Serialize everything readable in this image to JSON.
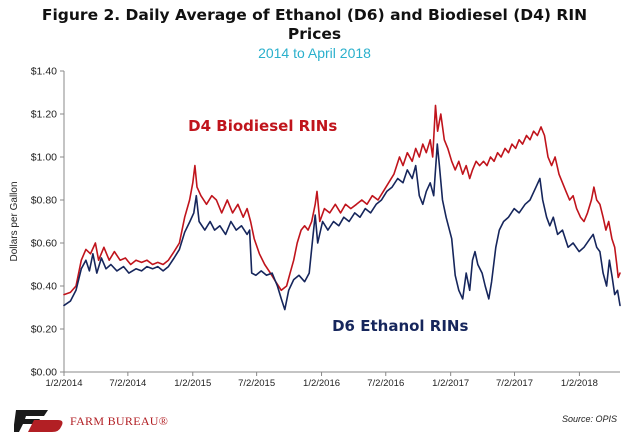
{
  "chart_data": {
    "type": "line",
    "title": "Figure 2. Daily Average of Ethanol (D6) and Biodiesel (D4) RIN Prices",
    "title_lines": [
      "Figure 2. Daily Average of Ethanol (D6) and Biodiesel (D4) RIN",
      "Prices"
    ],
    "subtitle": "2014 to April 2018",
    "ylabel": "Dollars per Gallon",
    "xlabel": "",
    "ylim": [
      0,
      1.4
    ],
    "yticks": [
      0,
      0.2,
      0.4,
      0.6,
      0.8,
      1.0,
      1.2,
      1.4
    ],
    "ytick_labels": [
      "$0.00",
      "$0.20",
      "$0.40",
      "$0.60",
      "$0.80",
      "$1.00",
      "$1.20",
      "$1.40"
    ],
    "xlim": [
      "2014-01-02",
      "2018-04-27"
    ],
    "xticks": [
      "2014-01-02",
      "2014-07-02",
      "2015-01-02",
      "2015-07-02",
      "2016-01-02",
      "2016-07-02",
      "2017-01-02",
      "2017-07-02",
      "2018-01-02"
    ],
    "xtick_labels": [
      "1/2/2014",
      "7/2/2014",
      "1/2/2015",
      "7/2/2015",
      "1/2/2016",
      "7/2/2016",
      "1/2/2017",
      "7/2/2017",
      "1/2/2018"
    ],
    "grid": false,
    "series": [
      {
        "name": "D4 Biodiesel RINs",
        "color": "#c0141c",
        "points": [
          [
            "2014-01-02",
            0.36
          ],
          [
            "2014-01-20",
            0.37
          ],
          [
            "2014-02-05",
            0.4
          ],
          [
            "2014-02-20",
            0.52
          ],
          [
            "2014-03-05",
            0.57
          ],
          [
            "2014-03-18",
            0.55
          ],
          [
            "2014-04-01",
            0.6
          ],
          [
            "2014-04-10",
            0.52
          ],
          [
            "2014-04-25",
            0.58
          ],
          [
            "2014-05-10",
            0.52
          ],
          [
            "2014-05-25",
            0.56
          ],
          [
            "2014-06-10",
            0.52
          ],
          [
            "2014-06-25",
            0.53
          ],
          [
            "2014-07-10",
            0.5
          ],
          [
            "2014-07-25",
            0.52
          ],
          [
            "2014-08-10",
            0.51
          ],
          [
            "2014-08-25",
            0.52
          ],
          [
            "2014-09-10",
            0.5
          ],
          [
            "2014-09-25",
            0.51
          ],
          [
            "2014-10-10",
            0.5
          ],
          [
            "2014-10-25",
            0.52
          ],
          [
            "2014-11-10",
            0.56
          ],
          [
            "2014-11-25",
            0.6
          ],
          [
            "2014-12-10",
            0.72
          ],
          [
            "2014-12-24",
            0.8
          ],
          [
            "2015-01-02",
            0.88
          ],
          [
            "2015-01-08",
            0.96
          ],
          [
            "2015-01-14",
            0.86
          ],
          [
            "2015-01-25",
            0.82
          ],
          [
            "2015-02-10",
            0.78
          ],
          [
            "2015-02-25",
            0.82
          ],
          [
            "2015-03-10",
            0.8
          ],
          [
            "2015-03-25",
            0.74
          ],
          [
            "2015-04-10",
            0.8
          ],
          [
            "2015-04-25",
            0.74
          ],
          [
            "2015-05-10",
            0.78
          ],
          [
            "2015-05-25",
            0.72
          ],
          [
            "2015-06-05",
            0.76
          ],
          [
            "2015-06-15",
            0.7
          ],
          [
            "2015-06-25",
            0.62
          ],
          [
            "2015-07-10",
            0.55
          ],
          [
            "2015-07-25",
            0.5
          ],
          [
            "2015-08-10",
            0.46
          ],
          [
            "2015-08-25",
            0.42
          ],
          [
            "2015-09-10",
            0.38
          ],
          [
            "2015-09-25",
            0.4
          ],
          [
            "2015-10-05",
            0.46
          ],
          [
            "2015-10-15",
            0.52
          ],
          [
            "2015-10-25",
            0.6
          ],
          [
            "2015-11-05",
            0.66
          ],
          [
            "2015-11-15",
            0.68
          ],
          [
            "2015-11-25",
            0.66
          ],
          [
            "2015-12-05",
            0.7
          ],
          [
            "2015-12-15",
            0.78
          ],
          [
            "2015-12-20",
            0.84
          ],
          [
            "2015-12-28",
            0.7
          ],
          [
            "2016-01-10",
            0.76
          ],
          [
            "2016-01-25",
            0.74
          ],
          [
            "2016-02-10",
            0.78
          ],
          [
            "2016-02-25",
            0.74
          ],
          [
            "2016-03-10",
            0.78
          ],
          [
            "2016-03-25",
            0.76
          ],
          [
            "2016-04-10",
            0.78
          ],
          [
            "2016-04-25",
            0.8
          ],
          [
            "2016-05-10",
            0.78
          ],
          [
            "2016-05-25",
            0.82
          ],
          [
            "2016-06-10",
            0.8
          ],
          [
            "2016-06-25",
            0.84
          ],
          [
            "2016-07-10",
            0.88
          ],
          [
            "2016-07-25",
            0.92
          ],
          [
            "2016-08-10",
            1.0
          ],
          [
            "2016-08-20",
            0.96
          ],
          [
            "2016-09-01",
            1.02
          ],
          [
            "2016-09-15",
            0.98
          ],
          [
            "2016-09-25",
            1.04
          ],
          [
            "2016-10-05",
            1.0
          ],
          [
            "2016-10-15",
            1.06
          ],
          [
            "2016-10-25",
            1.02
          ],
          [
            "2016-11-05",
            1.08
          ],
          [
            "2016-11-12",
            1.0
          ],
          [
            "2016-11-20",
            1.24
          ],
          [
            "2016-11-26",
            1.12
          ],
          [
            "2016-12-05",
            1.2
          ],
          [
            "2016-12-15",
            1.08
          ],
          [
            "2016-12-25",
            1.04
          ],
          [
            "2017-01-05",
            0.98
          ],
          [
            "2017-01-15",
            0.94
          ],
          [
            "2017-01-25",
            0.98
          ],
          [
            "2017-02-05",
            0.92
          ],
          [
            "2017-02-15",
            0.96
          ],
          [
            "2017-02-25",
            0.9
          ],
          [
            "2017-03-05",
            0.94
          ],
          [
            "2017-03-15",
            0.98
          ],
          [
            "2017-03-25",
            0.96
          ],
          [
            "2017-04-05",
            0.98
          ],
          [
            "2017-04-15",
            0.96
          ],
          [
            "2017-04-25",
            1.0
          ],
          [
            "2017-05-05",
            0.98
          ],
          [
            "2017-05-15",
            1.02
          ],
          [
            "2017-05-25",
            1.0
          ],
          [
            "2017-06-05",
            1.04
          ],
          [
            "2017-06-15",
            1.02
          ],
          [
            "2017-06-25",
            1.06
          ],
          [
            "2017-07-05",
            1.04
          ],
          [
            "2017-07-15",
            1.08
          ],
          [
            "2017-07-25",
            1.06
          ],
          [
            "2017-08-05",
            1.1
          ],
          [
            "2017-08-15",
            1.08
          ],
          [
            "2017-08-25",
            1.12
          ],
          [
            "2017-09-05",
            1.1
          ],
          [
            "2017-09-15",
            1.14
          ],
          [
            "2017-09-25",
            1.1
          ],
          [
            "2017-10-05",
            1.0
          ],
          [
            "2017-10-15",
            0.96
          ],
          [
            "2017-10-25",
            1.0
          ],
          [
            "2017-11-05",
            0.92
          ],
          [
            "2017-11-15",
            0.88
          ],
          [
            "2017-11-25",
            0.84
          ],
          [
            "2017-12-05",
            0.8
          ],
          [
            "2017-12-15",
            0.82
          ],
          [
            "2017-12-25",
            0.76
          ],
          [
            "2018-01-05",
            0.72
          ],
          [
            "2018-01-15",
            0.7
          ],
          [
            "2018-01-25",
            0.74
          ],
          [
            "2018-02-05",
            0.8
          ],
          [
            "2018-02-12",
            0.86
          ],
          [
            "2018-02-20",
            0.8
          ],
          [
            "2018-03-01",
            0.78
          ],
          [
            "2018-03-10",
            0.72
          ],
          [
            "2018-03-18",
            0.66
          ],
          [
            "2018-03-26",
            0.7
          ],
          [
            "2018-04-04",
            0.62
          ],
          [
            "2018-04-12",
            0.58
          ],
          [
            "2018-04-18",
            0.5
          ],
          [
            "2018-04-22",
            0.44
          ],
          [
            "2018-04-27",
            0.46
          ]
        ]
      },
      {
        "name": "D6 Ethanol RINs",
        "color": "#16265c",
        "points": [
          [
            "2014-01-02",
            0.31
          ],
          [
            "2014-01-20",
            0.33
          ],
          [
            "2014-02-05",
            0.38
          ],
          [
            "2014-02-20",
            0.48
          ],
          [
            "2014-03-05",
            0.52
          ],
          [
            "2014-03-15",
            0.47
          ],
          [
            "2014-03-25",
            0.55
          ],
          [
            "2014-04-05",
            0.46
          ],
          [
            "2014-04-18",
            0.53
          ],
          [
            "2014-05-01",
            0.48
          ],
          [
            "2014-05-15",
            0.5
          ],
          [
            "2014-06-01",
            0.47
          ],
          [
            "2014-06-20",
            0.49
          ],
          [
            "2014-07-05",
            0.46
          ],
          [
            "2014-07-25",
            0.48
          ],
          [
            "2014-08-10",
            0.47
          ],
          [
            "2014-08-25",
            0.49
          ],
          [
            "2014-09-10",
            0.48
          ],
          [
            "2014-09-25",
            0.49
          ],
          [
            "2014-10-10",
            0.47
          ],
          [
            "2014-10-25",
            0.49
          ],
          [
            "2014-11-10",
            0.53
          ],
          [
            "2014-11-25",
            0.57
          ],
          [
            "2014-12-10",
            0.65
          ],
          [
            "2014-12-25",
            0.7
          ],
          [
            "2015-01-05",
            0.74
          ],
          [
            "2015-01-12",
            0.82
          ],
          [
            "2015-01-20",
            0.7
          ],
          [
            "2015-02-05",
            0.66
          ],
          [
            "2015-02-20",
            0.7
          ],
          [
            "2015-03-05",
            0.66
          ],
          [
            "2015-03-20",
            0.68
          ],
          [
            "2015-04-05",
            0.64
          ],
          [
            "2015-04-20",
            0.7
          ],
          [
            "2015-05-05",
            0.66
          ],
          [
            "2015-05-20",
            0.68
          ],
          [
            "2015-06-05",
            0.64
          ],
          [
            "2015-06-12",
            0.66
          ],
          [
            "2015-06-18",
            0.46
          ],
          [
            "2015-06-30",
            0.45
          ],
          [
            "2015-07-15",
            0.47
          ],
          [
            "2015-07-30",
            0.45
          ],
          [
            "2015-08-15",
            0.46
          ],
          [
            "2015-08-30",
            0.4
          ],
          [
            "2015-09-10",
            0.34
          ],
          [
            "2015-09-20",
            0.29
          ],
          [
            "2015-10-01",
            0.38
          ],
          [
            "2015-10-15",
            0.43
          ],
          [
            "2015-10-30",
            0.45
          ],
          [
            "2015-11-15",
            0.42
          ],
          [
            "2015-11-28",
            0.46
          ],
          [
            "2015-12-08",
            0.62
          ],
          [
            "2015-12-15",
            0.73
          ],
          [
            "2015-12-22",
            0.6
          ],
          [
            "2016-01-05",
            0.7
          ],
          [
            "2016-01-20",
            0.66
          ],
          [
            "2016-02-05",
            0.7
          ],
          [
            "2016-02-20",
            0.68
          ],
          [
            "2016-03-05",
            0.72
          ],
          [
            "2016-03-20",
            0.7
          ],
          [
            "2016-04-05",
            0.74
          ],
          [
            "2016-04-20",
            0.72
          ],
          [
            "2016-05-05",
            0.76
          ],
          [
            "2016-05-20",
            0.74
          ],
          [
            "2016-06-05",
            0.78
          ],
          [
            "2016-06-20",
            0.8
          ],
          [
            "2016-07-05",
            0.84
          ],
          [
            "2016-07-20",
            0.86
          ],
          [
            "2016-08-05",
            0.9
          ],
          [
            "2016-08-20",
            0.88
          ],
          [
            "2016-09-01",
            0.94
          ],
          [
            "2016-09-15",
            0.9
          ],
          [
            "2016-09-25",
            0.96
          ],
          [
            "2016-10-05",
            0.82
          ],
          [
            "2016-10-15",
            0.78
          ],
          [
            "2016-10-25",
            0.84
          ],
          [
            "2016-11-05",
            0.88
          ],
          [
            "2016-11-15",
            0.82
          ],
          [
            "2016-11-25",
            1.06
          ],
          [
            "2016-12-01",
            0.96
          ],
          [
            "2016-12-10",
            0.8
          ],
          [
            "2016-12-20",
            0.72
          ],
          [
            "2017-01-05",
            0.62
          ],
          [
            "2017-01-15",
            0.45
          ],
          [
            "2017-01-25",
            0.38
          ],
          [
            "2017-02-05",
            0.34
          ],
          [
            "2017-02-15",
            0.46
          ],
          [
            "2017-02-25",
            0.38
          ],
          [
            "2017-03-05",
            0.52
          ],
          [
            "2017-03-12",
            0.56
          ],
          [
            "2017-03-20",
            0.5
          ],
          [
            "2017-04-01",
            0.46
          ],
          [
            "2017-04-10",
            0.4
          ],
          [
            "2017-04-20",
            0.34
          ],
          [
            "2017-04-28",
            0.42
          ],
          [
            "2017-05-10",
            0.58
          ],
          [
            "2017-05-20",
            0.66
          ],
          [
            "2017-06-01",
            0.7
          ],
          [
            "2017-06-15",
            0.72
          ],
          [
            "2017-07-01",
            0.76
          ],
          [
            "2017-07-15",
            0.74
          ],
          [
            "2017-08-01",
            0.78
          ],
          [
            "2017-08-15",
            0.8
          ],
          [
            "2017-09-01",
            0.86
          ],
          [
            "2017-09-12",
            0.9
          ],
          [
            "2017-09-20",
            0.8
          ],
          [
            "2017-10-01",
            0.72
          ],
          [
            "2017-10-10",
            0.68
          ],
          [
            "2017-10-20",
            0.72
          ],
          [
            "2017-11-01",
            0.64
          ],
          [
            "2017-11-15",
            0.66
          ],
          [
            "2017-12-01",
            0.58
          ],
          [
            "2017-12-15",
            0.6
          ],
          [
            "2018-01-01",
            0.56
          ],
          [
            "2018-01-15",
            0.58
          ],
          [
            "2018-02-01",
            0.62
          ],
          [
            "2018-02-10",
            0.64
          ],
          [
            "2018-02-20",
            0.58
          ],
          [
            "2018-03-01",
            0.56
          ],
          [
            "2018-03-10",
            0.46
          ],
          [
            "2018-03-20",
            0.4
          ],
          [
            "2018-03-28",
            0.52
          ],
          [
            "2018-04-05",
            0.44
          ],
          [
            "2018-04-12",
            0.36
          ],
          [
            "2018-04-20",
            0.38
          ],
          [
            "2018-04-27",
            0.31
          ]
        ]
      }
    ],
    "annotations": [
      {
        "text": "D4 Biodiesel RINs",
        "series": "D4 Biodiesel RINs",
        "x": "2014-12-20",
        "y": 1.12
      },
      {
        "text": "D6 Ethanol RINs",
        "series": "D6 Ethanol RINs",
        "x": "2016-02-01",
        "y": 0.19
      }
    ]
  },
  "footer": {
    "logo_text": "FARM BUREAU®",
    "logo_icon": "farm-bureau-logo-icon",
    "source": "Source: OPIS"
  }
}
